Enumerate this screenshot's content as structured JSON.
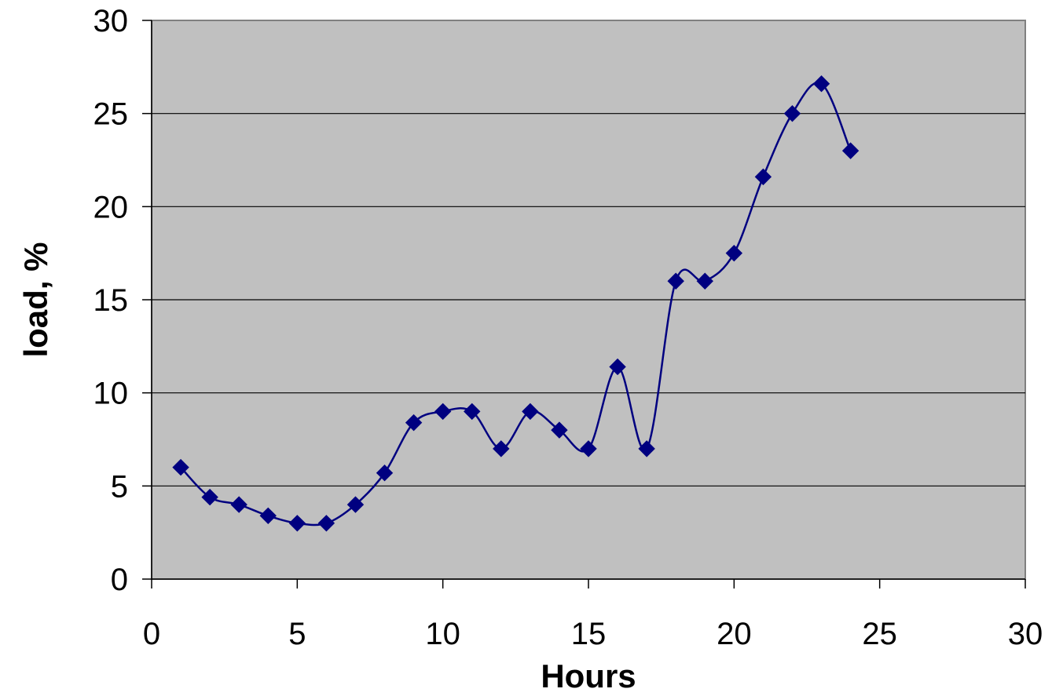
{
  "chart_data": {
    "type": "line",
    "title": "",
    "xlabel": "Hours",
    "ylabel": "load, %",
    "xlim": [
      0,
      30
    ],
    "ylim": [
      0,
      30
    ],
    "x_ticks": [
      "0",
      "5",
      "10",
      "15",
      "20",
      "25",
      "30"
    ],
    "y_ticks": [
      "0",
      "5",
      "10",
      "15",
      "20",
      "25",
      "30"
    ],
    "grid": "horizontal",
    "smoothed": true,
    "marker": "diamond",
    "colors": {
      "plot_background": "#c0c0c0",
      "series": "#000080",
      "gridline": "#000000",
      "axis": "#000000",
      "plot_border": "#808080"
    },
    "series": [
      {
        "x": [
          1,
          2,
          3,
          4,
          5,
          6,
          7,
          8,
          9,
          10,
          11,
          12,
          13,
          14,
          15,
          16,
          17,
          18,
          19,
          20,
          21,
          22,
          23,
          24
        ],
        "values": [
          6,
          4.4,
          4,
          3.4,
          3,
          3,
          4,
          5.7,
          8.4,
          9,
          9,
          7,
          9,
          8,
          7,
          11.4,
          7,
          16,
          16,
          17.5,
          21.6,
          25,
          26.6,
          23
        ]
      }
    ]
  }
}
